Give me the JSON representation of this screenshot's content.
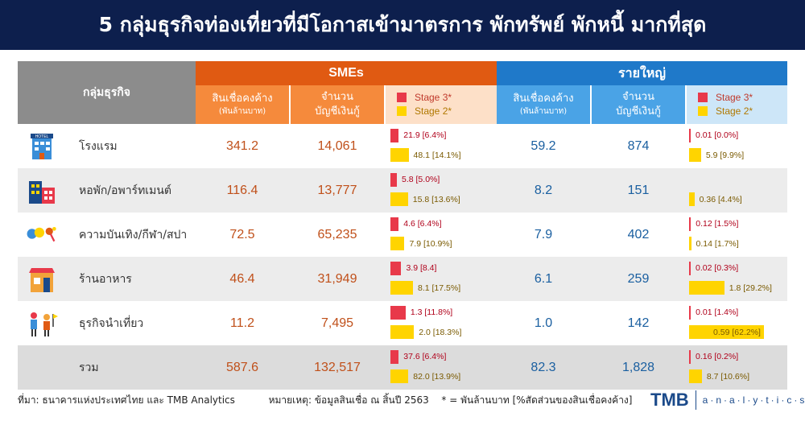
{
  "title": "5 กลุ่มธุรกิจท่องเที่ยวที่มีโอกาสเข้ามาตรการ พักทรัพย์ พักหนี้ มากที่สุด",
  "header": {
    "group_label": "กลุ่มธุรกิจ",
    "sme_label": "SMEs",
    "big_label": "รายใหญ่",
    "outstanding": "สินเชื่อคงค้าง",
    "outstanding_unit": "(พันล้านบาท)",
    "accounts_1": "จำนวน",
    "accounts_2": "บัญชีเงินกู้",
    "stage3": "Stage 3*",
    "stage2": "Stage 2*"
  },
  "rows": [
    {
      "name": "โรงแรม",
      "icon": "hotel-icon",
      "icon_text": "HOTEL",
      "sme_out": "341.2",
      "sme_acc": "14,061",
      "sme_s3": "21.9 [6.4%]",
      "sme_s2": "48.1 [14.1%]",
      "sme_s3_pct": 6.4,
      "sme_s2_pct": 14.1,
      "big_out": "59.2",
      "big_acc": "874",
      "big_s3": "0.01 [0.0%]",
      "big_s2": "5.9 [9.9%]",
      "big_s3_pct": 0.0,
      "big_s2_pct": 9.9
    },
    {
      "name": "หอพัก/อพาร์ทเมนต์",
      "icon": "apartment-icon",
      "sme_out": "116.4",
      "sme_acc": "13,777",
      "sme_s3": "5.8 [5.0%]",
      "sme_s2": "15.8 [13.6%]",
      "sme_s3_pct": 5.0,
      "sme_s2_pct": 13.6,
      "big_out": "8.2",
      "big_acc": "151",
      "big_s3": "",
      "big_s2": "0.36 [4.4%]",
      "big_s3_pct": 0,
      "big_s2_pct": 4.4
    },
    {
      "name": "ความบันเทิง/กีฬา/สปา",
      "icon": "entertainment-icon",
      "sme_out": "72.5",
      "sme_acc": "65,235",
      "sme_s3": "4.6 [6.4%]",
      "sme_s2": "7.9 [10.9%]",
      "sme_s3_pct": 6.4,
      "sme_s2_pct": 10.9,
      "big_out": "7.9",
      "big_acc": "402",
      "big_s3": "0.12 [1.5%]",
      "big_s2": "0.14 [1.7%]",
      "big_s3_pct": 1.5,
      "big_s2_pct": 1.7
    },
    {
      "name": "ร้านอาหาร",
      "icon": "restaurant-icon",
      "sme_out": "46.4",
      "sme_acc": "31,949",
      "sme_s3": "3.9 [8.4]",
      "sme_s2": "8.1 [17.5%]",
      "sme_s3_pct": 8.4,
      "sme_s2_pct": 17.5,
      "big_out": "6.1",
      "big_acc": "259",
      "big_s3": "0.02 [0.3%]",
      "big_s2": "1.8 [29.2%]",
      "big_s3_pct": 0.3,
      "big_s2_pct": 29.2
    },
    {
      "name": "ธุรกิจนำเที่ยว",
      "icon": "tour-icon",
      "sme_out": "11.2",
      "sme_acc": "7,495",
      "sme_s3": "1.3 [11.8%]",
      "sme_s2": "2.0 [18.3%]",
      "sme_s3_pct": 11.8,
      "sme_s2_pct": 18.3,
      "big_out": "1.0",
      "big_acc": "142",
      "big_s3": "0.01 [1.4%]",
      "big_s2": "0.59 [62.2%]",
      "big_s3_pct": 1.4,
      "big_s2_pct": 62.2
    },
    {
      "name": "รวม",
      "icon": "",
      "sme_out": "587.6",
      "sme_acc": "132,517",
      "sme_s3": "37.6 [6.4%]",
      "sme_s2": "82.0 [13.9%]",
      "sme_s3_pct": 6.4,
      "sme_s2_pct": 13.9,
      "big_out": "82.3",
      "big_acc": "1,828",
      "big_s3": "0.16 [0.2%]",
      "big_s2": "8.7 [10.6%]",
      "big_s3_pct": 0.2,
      "big_s2_pct": 10.6
    }
  ],
  "footer": {
    "source": "ที่มา: ธนาคารแห่งประเทศไทย และ TMB Analytics",
    "note": "หมายเหตุ: ข้อมูลสินเชื่อ ณ สิ้นปี 2563",
    "unit_note": "* = พันล้านบาท [%สัดส่วนของสินเชื่อคงค้าง]"
  },
  "logo": {
    "brand": "TMB",
    "sub": "a·n·a·l·y·t·i·c·s"
  },
  "colors": {
    "stage3": "#e8394a",
    "stage2": "#ffd400",
    "sme": "#e05a12",
    "big": "#1f79c9",
    "title_bg": "#0d1f4d"
  }
}
